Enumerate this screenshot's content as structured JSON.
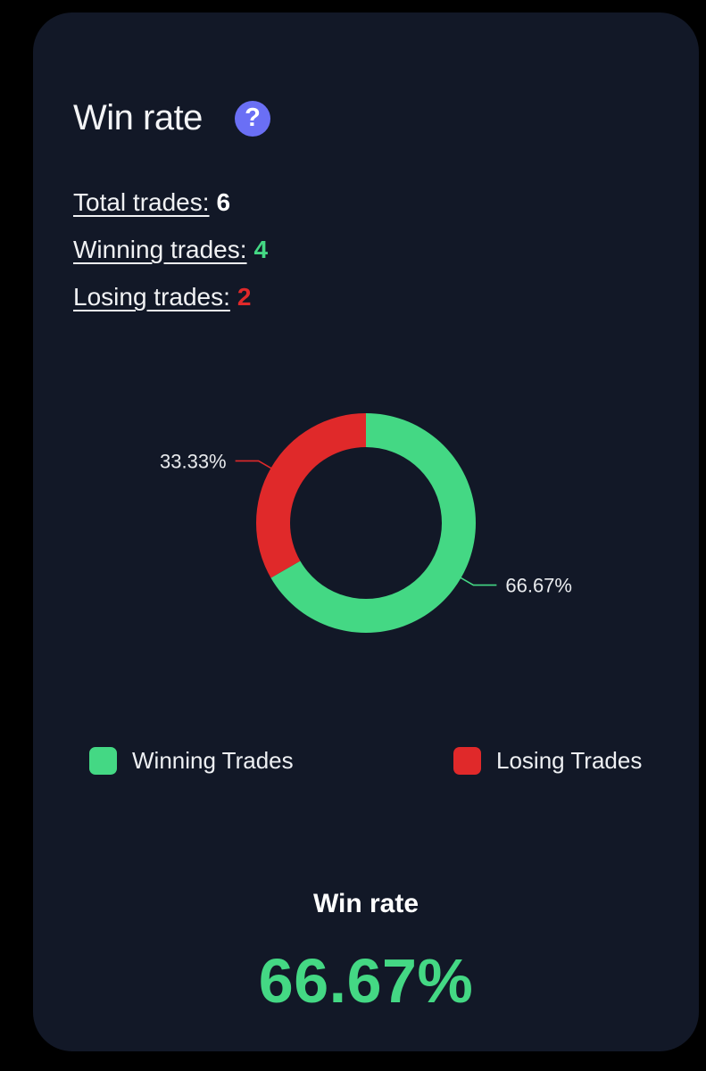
{
  "header": {
    "title": "Win rate",
    "help_icon": "question-mark-icon",
    "help_symbol": "?"
  },
  "stats": {
    "total_label": "Total trades:",
    "total_value": "6",
    "winning_label": "Winning trades:",
    "winning_value": "4",
    "losing_label": "Losing trades:",
    "losing_value": "2"
  },
  "colors": {
    "card_background": "#121827",
    "winning": "#44d884",
    "losing": "#e0292a",
    "accent": "#6a6ff5"
  },
  "chart_data": {
    "type": "pie",
    "donut": true,
    "categories": [
      "Winning Trades",
      "Losing Trades"
    ],
    "values": [
      66.67,
      33.33
    ],
    "data_labels": [
      "66.67%",
      "33.33%"
    ],
    "colors": [
      "#44d884",
      "#e0292a"
    ],
    "legend_position": "bottom"
  },
  "legend": {
    "winning_label": "Winning Trades",
    "losing_label": "Losing Trades"
  },
  "summary": {
    "label": "Win rate",
    "value": "66.67%"
  }
}
